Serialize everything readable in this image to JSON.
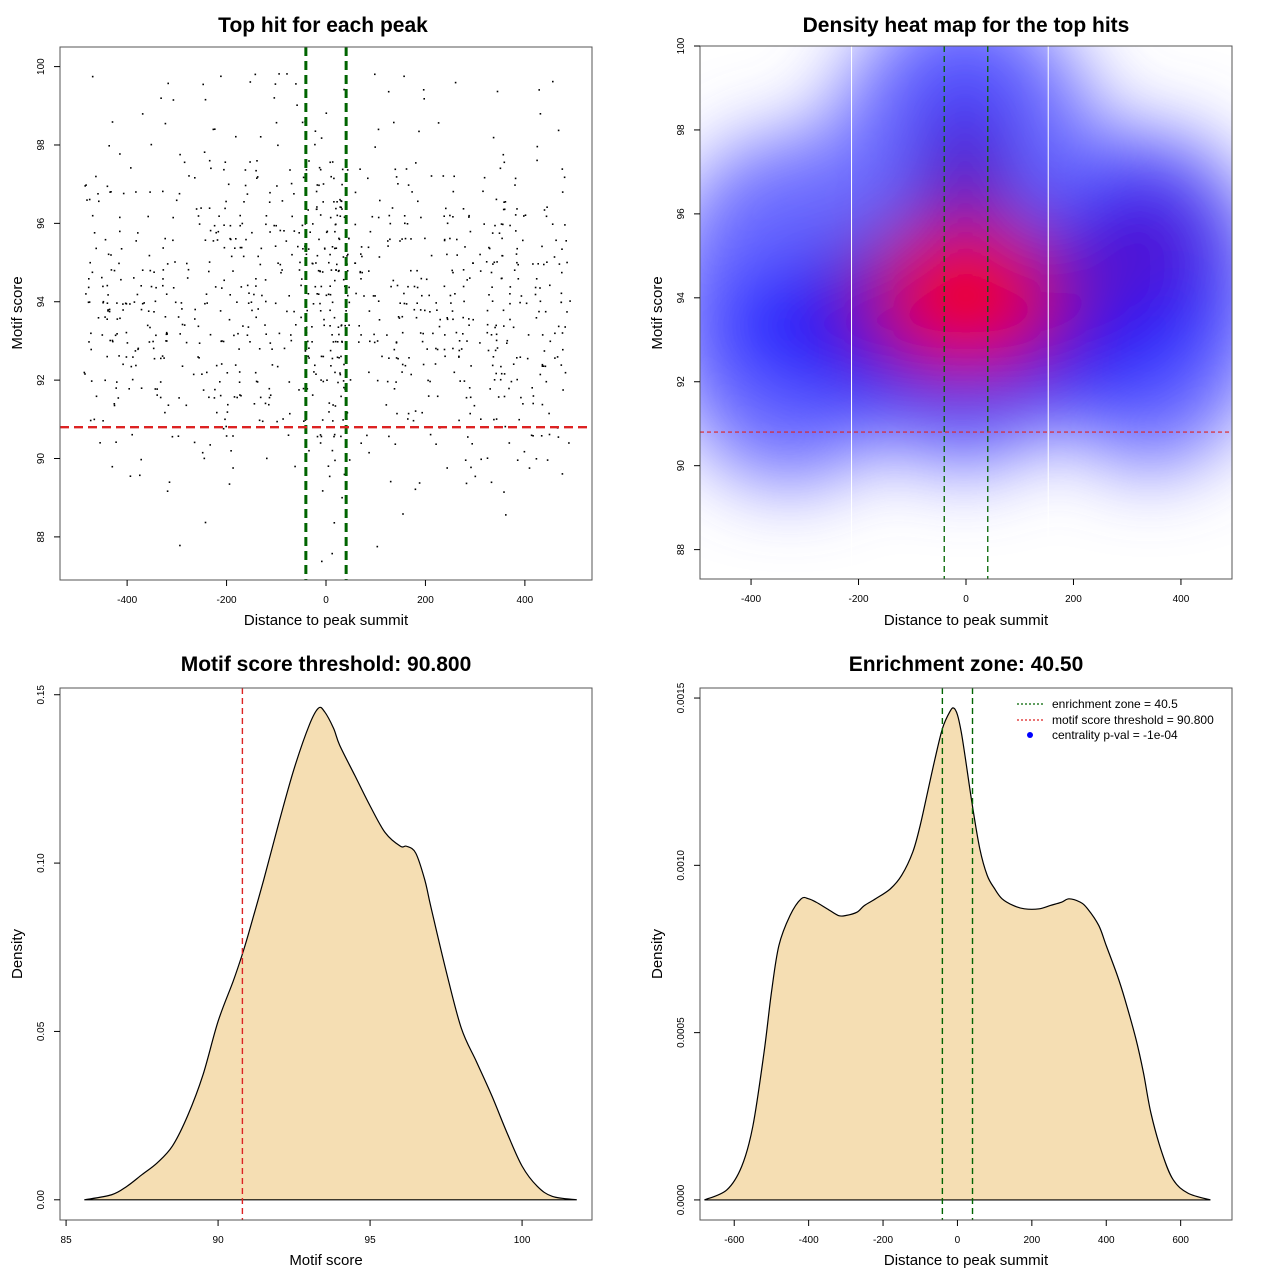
{
  "chart_data": [
    {
      "id": "scatter",
      "type": "scatter",
      "title": "Top hit for each peak",
      "xlabel": "Distance to peak summit",
      "ylabel": "Motif score",
      "xlim": [
        -535,
        535
      ],
      "ylim": [
        86.9,
        100.5
      ],
      "xticks": [
        -400,
        -200,
        0,
        200,
        400
      ],
      "yticks": [
        88,
        90,
        92,
        94,
        96,
        98,
        100
      ],
      "hlines": [
        {
          "value": 90.8,
          "color": "#dd2222",
          "style": "dashed",
          "label": "motif score threshold"
        }
      ],
      "vlines": [
        {
          "value": -40.5,
          "color": "#006400",
          "style": "dashed"
        },
        {
          "value": 40.5,
          "color": "#006400",
          "style": "dashed"
        }
      ],
      "points_note": "~1000 peak top hits, x uniform in [-490, 490], y roughly normal (mean 94, sd 2.4), denser near x = 0",
      "n_points": 1000
    },
    {
      "id": "heatmap",
      "type": "heatmap",
      "title": "Density heat map for the top hits",
      "xlabel": "Distance to peak summit",
      "ylabel": "Motif score",
      "xlim": [
        -495,
        495
      ],
      "ylim": [
        87.3,
        100
      ],
      "xticks": [
        -400,
        -200,
        0,
        200,
        400
      ],
      "yticks": [
        88,
        90,
        92,
        94,
        96,
        98,
        100
      ],
      "hlines": [
        {
          "value": 90.8,
          "color": "#dd2222",
          "style": "dashed"
        }
      ],
      "vlines": [
        {
          "value": -40.5,
          "color": "#006400",
          "style": "dashed"
        },
        {
          "value": 40.5,
          "color": "#006400",
          "style": "dashed"
        }
      ],
      "white_vlines": [
        -213,
        153
      ],
      "hotspot": {
        "x": 0,
        "y": 94
      },
      "colors": [
        "#ffffff",
        "#0000ff",
        "#ff0000"
      ]
    },
    {
      "id": "score-density",
      "type": "area",
      "title": "Motif score threshold: 90.800",
      "xlabel": "Motif score",
      "ylabel": "Density",
      "xlim": [
        84.8,
        102.3
      ],
      "ylim": [
        -0.006,
        0.152
      ],
      "xticks": [
        85,
        90,
        95,
        100
      ],
      "ytick_values": [
        0,
        0.05,
        0.1,
        0.15
      ],
      "ytick_labels": [
        "0.00",
        "0.05",
        "0.10",
        "0.15"
      ],
      "x": [
        85.6,
        86.5,
        87.0,
        87.5,
        88.0,
        88.5,
        89.0,
        89.5,
        90.0,
        90.5,
        90.8,
        91.0,
        91.5,
        92.0,
        92.5,
        93.0,
        93.3,
        93.5,
        93.8,
        94.0,
        94.5,
        95.0,
        95.5,
        96.0,
        96.2,
        96.5,
        96.8,
        97.0,
        97.5,
        98.0,
        98.5,
        99.0,
        99.5,
        100.0,
        100.5,
        101.0,
        101.8
      ],
      "y": [
        0.0,
        0.0015,
        0.004,
        0.0075,
        0.011,
        0.016,
        0.025,
        0.037,
        0.053,
        0.065,
        0.073,
        0.079,
        0.095,
        0.112,
        0.128,
        0.141,
        0.146,
        0.145,
        0.14,
        0.135,
        0.126,
        0.117,
        0.109,
        0.105,
        0.105,
        0.103,
        0.095,
        0.087,
        0.068,
        0.051,
        0.041,
        0.031,
        0.02,
        0.01,
        0.004,
        0.001,
        0.0
      ],
      "vlines": [
        {
          "value": 90.8,
          "color": "#dd2222",
          "style": "dashed"
        }
      ],
      "fill": "#f5deb3"
    },
    {
      "id": "distance-density",
      "type": "area",
      "title": "Enrichment zone: 40.50",
      "xlabel": "Distance to peak summit",
      "ylabel": "Density",
      "xlim": [
        -692,
        738
      ],
      "ylim": [
        -6e-05,
        0.00153
      ],
      "xticks": [
        -600,
        -400,
        -200,
        0,
        200,
        400,
        600
      ],
      "ytick_values": [
        0,
        0.0005,
        0.001,
        0.0015
      ],
      "ytick_labels": [
        "0.0000",
        "0.0005",
        "0.0010",
        "0.0015"
      ],
      "x": [
        -680,
        -620,
        -580,
        -550,
        -520,
        -500,
        -480,
        -450,
        -420,
        -400,
        -380,
        -350,
        -320,
        -300,
        -270,
        -250,
        -220,
        -180,
        -150,
        -120,
        -100,
        -80,
        -60,
        -40,
        -20,
        -10,
        0,
        10,
        20,
        40,
        60,
        80,
        100,
        120,
        150,
        180,
        220,
        250,
        280,
        300,
        330,
        350,
        380,
        400,
        430,
        450,
        480,
        500,
        520,
        550,
        580,
        620,
        680
      ],
      "y": [
        0.0,
        3e-05,
        0.0001,
        0.00022,
        0.00044,
        0.00062,
        0.00076,
        0.00085,
        0.0009,
        0.0009,
        0.00089,
        0.00087,
        0.00085,
        0.00085,
        0.00086,
        0.00088,
        0.0009,
        0.00093,
        0.00097,
        0.00104,
        0.00112,
        0.00122,
        0.00132,
        0.00141,
        0.00146,
        0.00147,
        0.00145,
        0.0014,
        0.00133,
        0.00118,
        0.00105,
        0.00097,
        0.00093,
        0.0009,
        0.00088,
        0.00087,
        0.00087,
        0.00088,
        0.00089,
        0.0009,
        0.00089,
        0.00087,
        0.00082,
        0.00076,
        0.00067,
        0.0006,
        0.00048,
        0.00038,
        0.00026,
        0.00014,
        6e-05,
        2e-05,
        0.0
      ],
      "vlines": [
        {
          "value": -40.5,
          "color": "#006400",
          "style": "dashed"
        },
        {
          "value": 40.5,
          "color": "#006400",
          "style": "dashed"
        }
      ],
      "fill": "#f5deb3",
      "legend": {
        "position": "top-right",
        "entries": [
          {
            "label": "enrichment zone = 40.5",
            "color": "#006400",
            "kind": "dotted-line"
          },
          {
            "label": "motif score threshold = 90.800",
            "color": "#dd2222",
            "kind": "dotted-line"
          },
          {
            "label": "centrality p-val = -1e-04",
            "color": "#0000ff",
            "kind": "point"
          }
        ]
      }
    }
  ]
}
